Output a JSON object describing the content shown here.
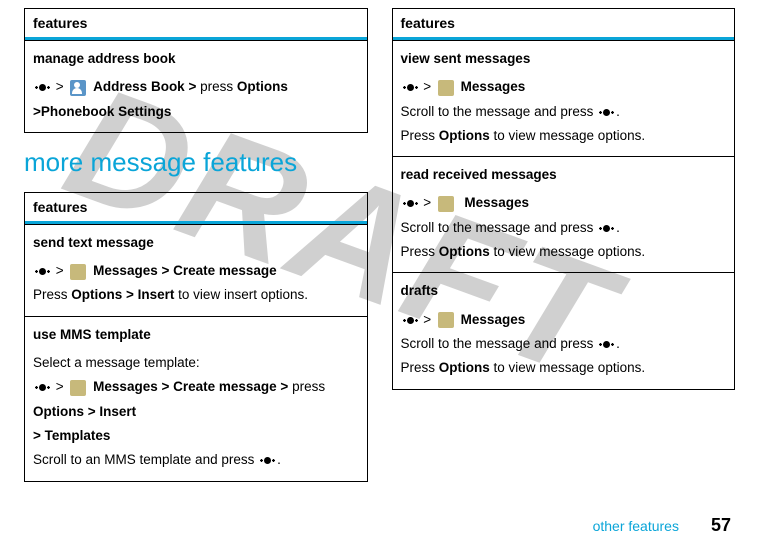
{
  "watermark": "DRAFT",
  "left": {
    "box1": {
      "header": "features",
      "row1": {
        "title": "manage address book",
        "seq": [
          "joykey",
          ">",
          "icon-person",
          "cond:Address Book >",
          "text:press",
          "cond:Options >Phonebook Settings"
        ]
      }
    },
    "heading": "more message features",
    "box2": {
      "header": "features",
      "row1": {
        "title": "send text message",
        "l1": [
          "joykey",
          ">",
          "icon-folder",
          "cond:Messages >",
          "cond:Create message"
        ],
        "l2_a": "Press ",
        "l2_b": "Options > ",
        "l2_c": "Insert",
        "l2_d": " to view insert options."
      },
      "row2": {
        "title": "use MMS template",
        "l1": "Select a message template:",
        "l2": [
          "joykey",
          ">",
          "icon-folder",
          "cond:Messages >",
          "cond:Create message >",
          "text:press",
          "cond:Options >",
          "cond:Insert"
        ],
        "l3": [
          ">",
          "cond:Templates"
        ],
        "l4_a": "Scroll to an MMS template and press ",
        "l4_b": "."
      }
    }
  },
  "right": {
    "box": {
      "header": "features",
      "row1": {
        "title": "view sent messages",
        "l1": [
          "joykey",
          ">",
          "icon-folder",
          "cond:Messages"
        ],
        "l2_a": "Scroll to the message and press ",
        "l2_b": ".",
        "l3_a": "Press ",
        "l3_b": "Options",
        "l3_c": " to view message options."
      },
      "row2": {
        "title": "read received messages",
        "l1": [
          "joykey",
          ">",
          "icon-folder",
          "cond:Messages"
        ],
        "l2_a": "Scroll to the message and press ",
        "l2_b": ".",
        "l3_a": "Press ",
        "l3_b": "Options",
        "l3_c": " to view message options."
      },
      "row3": {
        "title": "drafts",
        "l1": [
          "joykey",
          ">",
          "icon-folder",
          "cond:Messages"
        ],
        "l2_a": "Scroll to the message and press ",
        "l2_b": ".",
        "l3_a": "Press ",
        "l3_b": "Options",
        "l3_c": " to view message options."
      }
    }
  },
  "footer": {
    "link": "other features",
    "page": "57"
  }
}
